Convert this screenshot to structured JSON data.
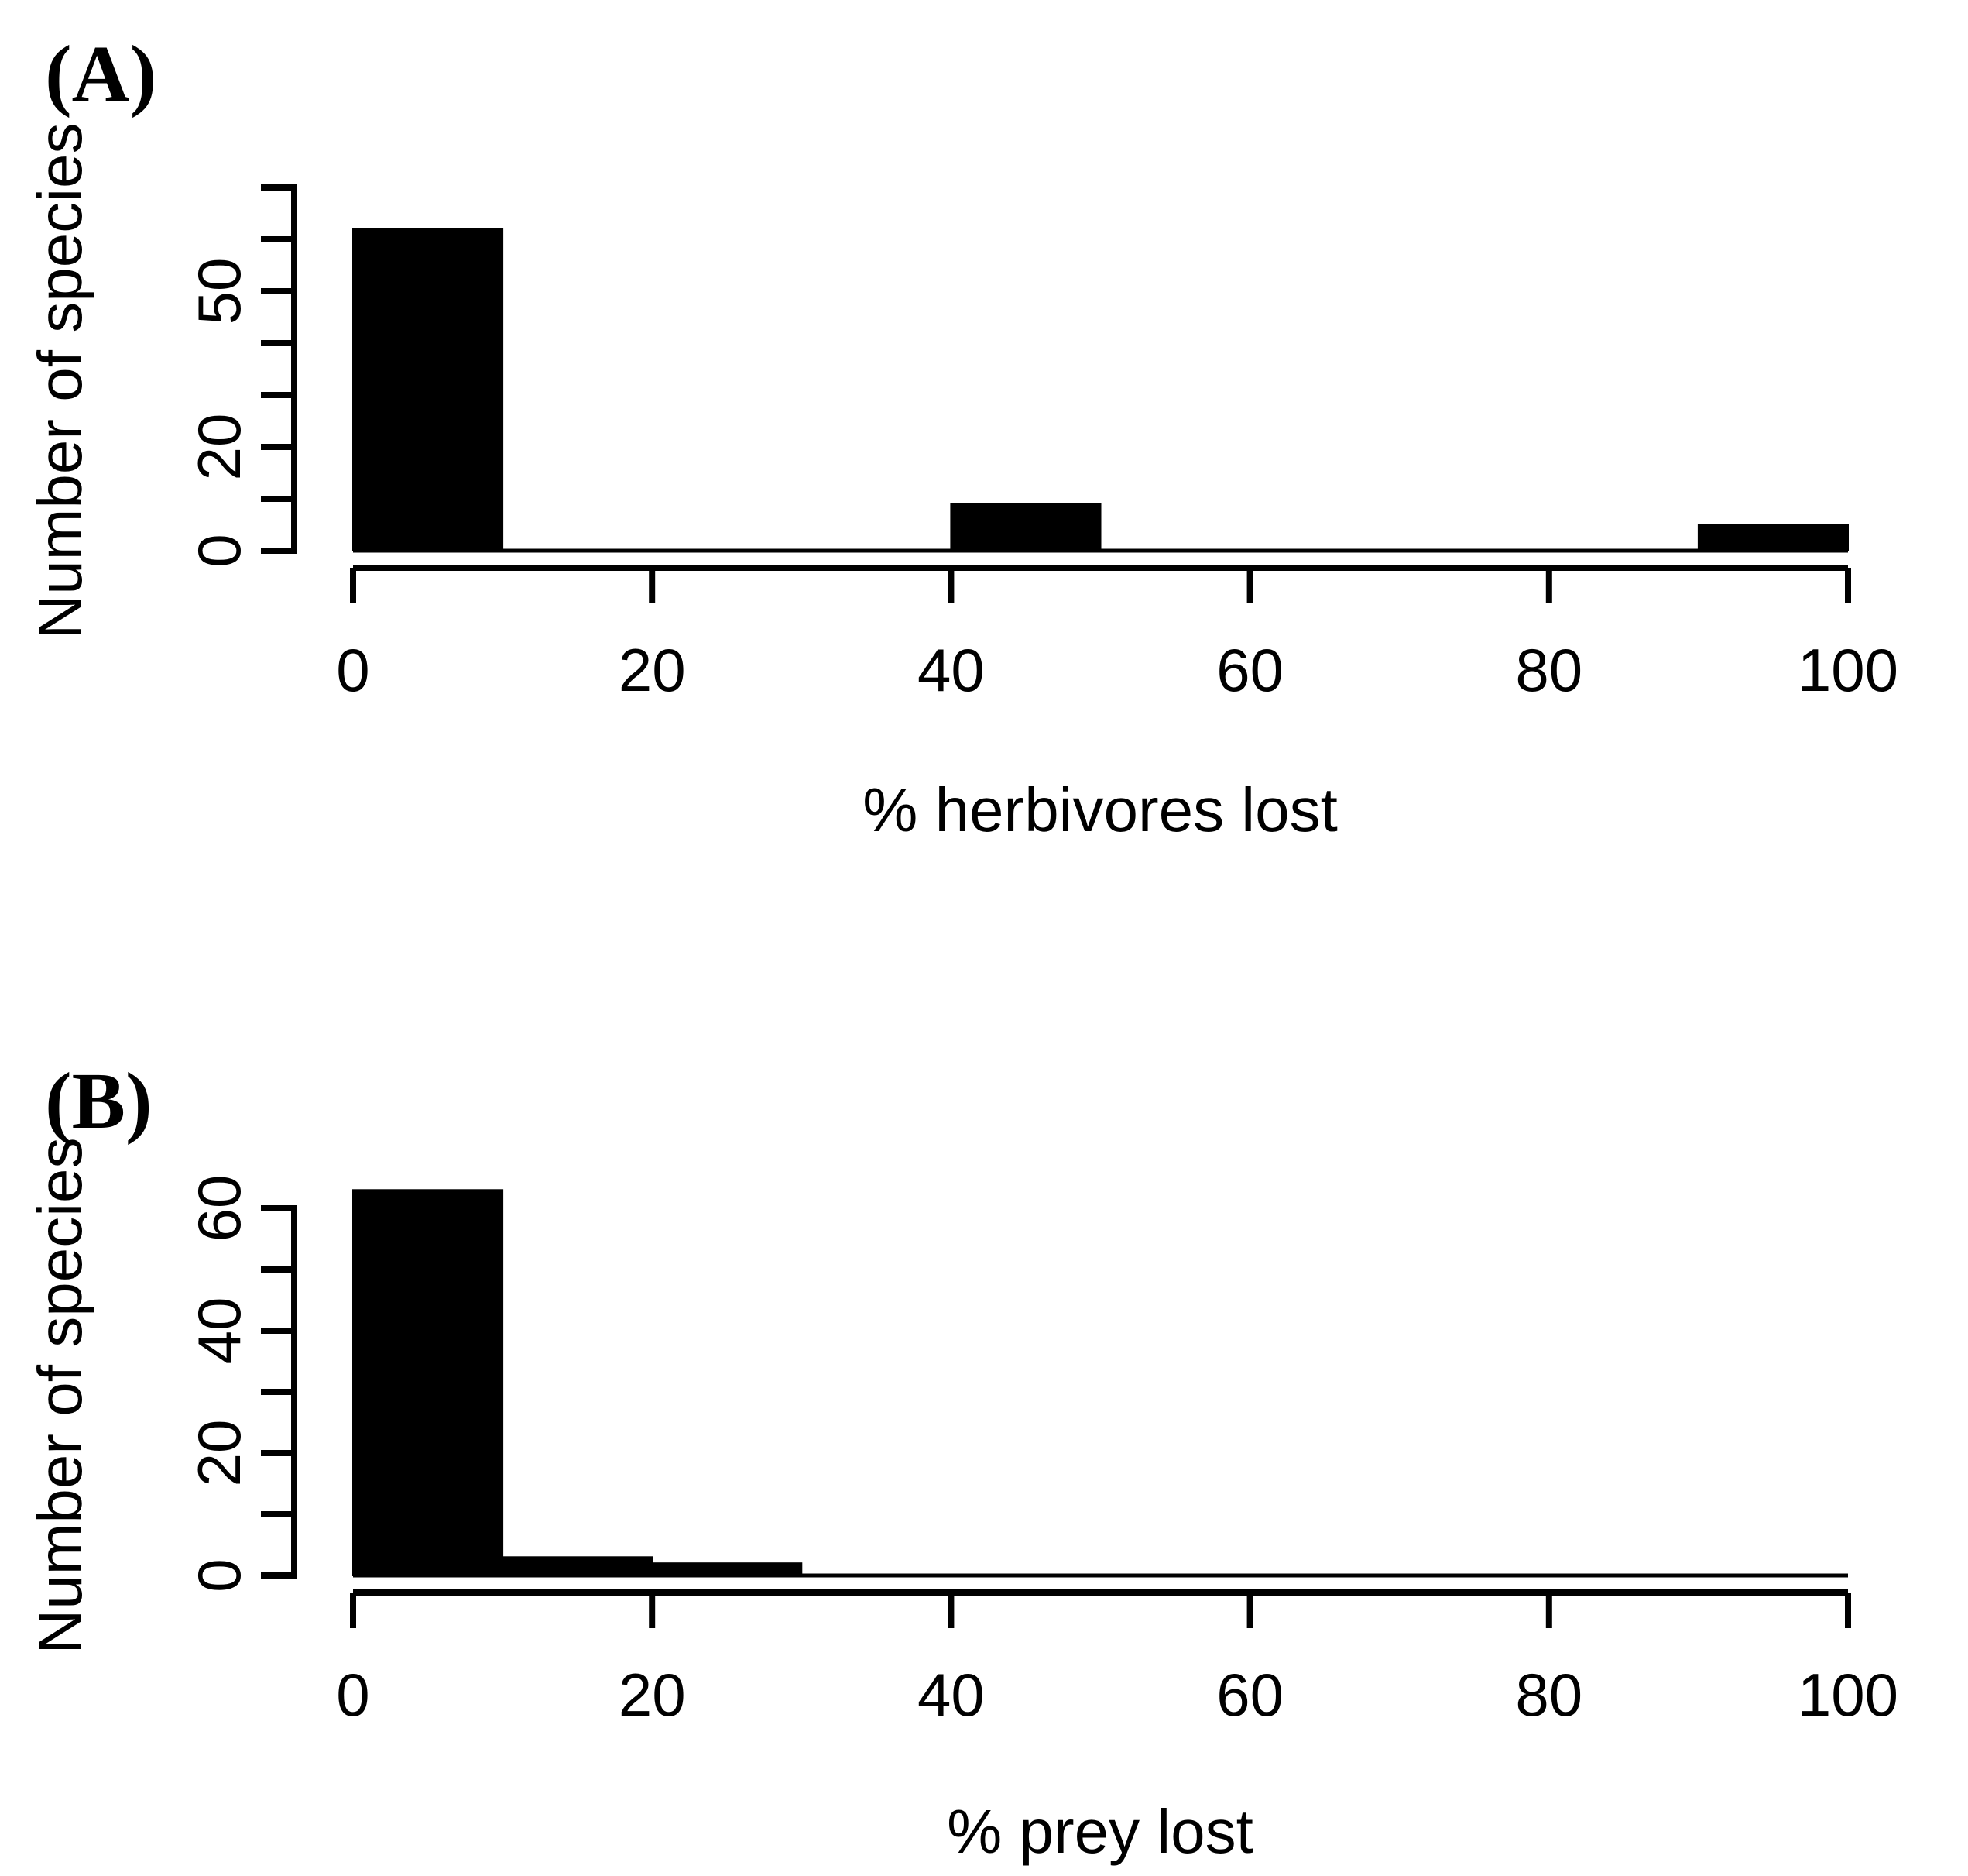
{
  "figure": {
    "background": "#ffffff",
    "ink_color": "#000000",
    "bar_color": "#000000",
    "panels": [
      {
        "id": "A",
        "panel_label": "(A)",
        "y_axis_title": "Number of species",
        "x_axis_title": "% herbivores lost",
        "y_tick_labels_shown": [
          "0",
          "20",
          "50"
        ],
        "x_tick_labels": [
          "0",
          "20",
          "40",
          "60",
          "80",
          "100"
        ]
      },
      {
        "id": "B",
        "panel_label": "(B)",
        "y_axis_title": "Number of species",
        "x_axis_title": "% prey lost",
        "y_tick_labels_shown": [
          "0",
          "20",
          "40",
          "60"
        ],
        "x_tick_labels": [
          "0",
          "20",
          "40",
          "60",
          "80",
          "100"
        ]
      }
    ]
  },
  "chart_data": [
    {
      "type": "bar",
      "subtype": "histogram",
      "panel": "(A)",
      "title": "",
      "xlabel": "% herbivores lost",
      "ylabel": "Number of species",
      "bin_width": 10,
      "bin_edges": [
        0,
        10,
        20,
        30,
        40,
        50,
        60,
        70,
        80,
        90,
        100
      ],
      "categories": [
        "0-10",
        "10-20",
        "20-30",
        "30-40",
        "40-50",
        "50-60",
        "60-70",
        "70-80",
        "80-90",
        "90-100"
      ],
      "values": [
        62,
        0,
        0,
        0,
        9,
        0,
        0,
        0,
        0,
        5
      ],
      "xlim": [
        0,
        100
      ],
      "ylim": [
        0,
        70
      ],
      "x_ticks": [
        0,
        20,
        40,
        60,
        80,
        100
      ],
      "y_ticks": [
        0,
        10,
        20,
        30,
        40,
        50,
        60,
        70
      ],
      "y_ticks_labeled": [
        0,
        20,
        50
      ],
      "grid": false,
      "legend": false,
      "bar_color": "#000000"
    },
    {
      "type": "bar",
      "subtype": "histogram",
      "panel": "(B)",
      "title": "",
      "xlabel": "% prey lost",
      "ylabel": "Number of species",
      "bin_width": 10,
      "bin_edges": [
        0,
        10,
        20,
        30,
        40,
        50,
        60,
        70,
        80,
        90,
        100
      ],
      "categories": [
        "0-10",
        "10-20",
        "20-30",
        "30-40",
        "40-50",
        "50-60",
        "60-70",
        "70-80",
        "80-90",
        "90-100"
      ],
      "values": [
        63,
        3,
        2,
        0,
        0,
        0,
        0,
        0,
        0,
        0
      ],
      "xlim": [
        0,
        100
      ],
      "ylim": [
        0,
        60
      ],
      "x_ticks": [
        0,
        20,
        40,
        60,
        80,
        100
      ],
      "y_ticks": [
        0,
        10,
        20,
        30,
        40,
        50,
        60
      ],
      "y_ticks_labeled": [
        0,
        20,
        40,
        60
      ],
      "grid": false,
      "legend": false,
      "bar_color": "#000000"
    }
  ]
}
